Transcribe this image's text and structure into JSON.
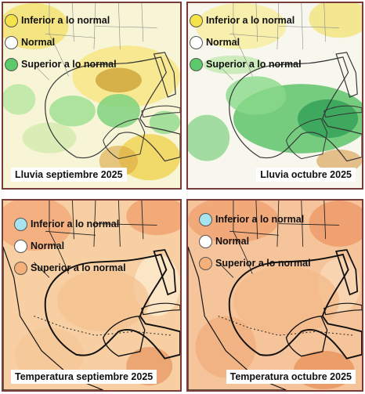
{
  "legend_labels": {
    "below": "Inferior a lo normal",
    "normal": "Normal",
    "above": "Superior a lo normal"
  },
  "colors": {
    "rain_below": "#f5e34a",
    "rain_normal": "#ffffff",
    "rain_above": "#5cc96a",
    "temp_below": "#a8e4ef",
    "temp_normal": "#ffffff",
    "temp_above": "#f5b07a"
  },
  "panels": [
    {
      "variable": "Lluvia",
      "caption": "Lluvia septiembre 2025"
    },
    {
      "variable": "Lluvia",
      "caption": "Lluvia octubre 2025"
    },
    {
      "variable": "Temperatura",
      "caption": "Temperatura septiembre 2025"
    },
    {
      "variable": "Temperatura",
      "caption": "Temperatura octubre 2025"
    }
  ]
}
